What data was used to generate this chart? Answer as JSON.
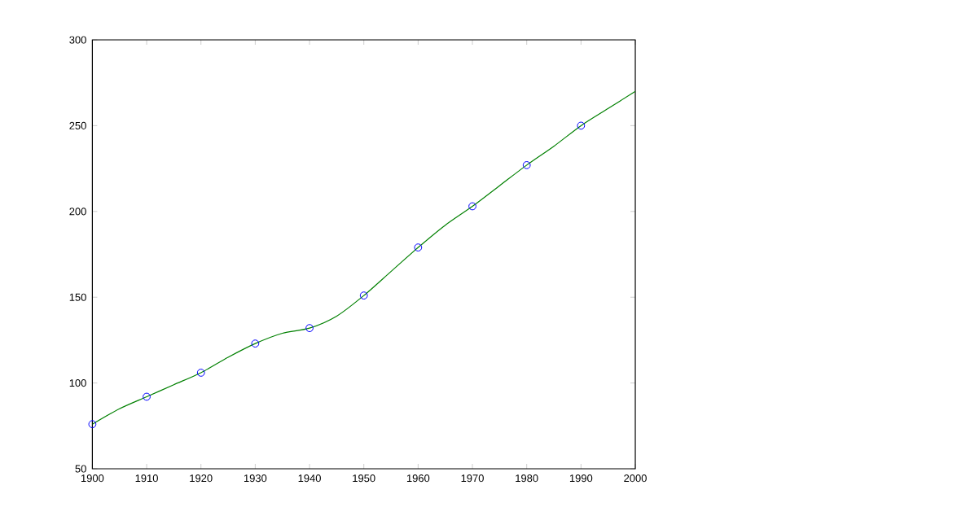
{
  "chart_data": {
    "type": "line",
    "xlim": [
      1900,
      2000
    ],
    "ylim": [
      50,
      300
    ],
    "xticks": [
      1900,
      1910,
      1920,
      1930,
      1940,
      1950,
      1960,
      1970,
      1980,
      1990,
      2000
    ],
    "yticks": [
      50,
      100,
      150,
      200,
      250,
      300
    ],
    "series": [
      {
        "type": "scatter",
        "marker": "circle",
        "color": "#0000ff",
        "x": [
          1900,
          1910,
          1920,
          1930,
          1940,
          1950,
          1960,
          1970,
          1980,
          1990
        ],
        "values": [
          76,
          92,
          106,
          123,
          132,
          151,
          179,
          203,
          227,
          250
        ]
      },
      {
        "marker": "none",
        "line_style": "solid",
        "color": "#008000",
        "x": [
          1900,
          1905,
          1910,
          1915,
          1920,
          1925,
          1930,
          1935,
          1940,
          1945,
          1950,
          1955,
          1960,
          1965,
          1970,
          1975,
          1980,
          1985,
          1990,
          1995,
          2000
        ],
        "values": [
          76,
          85,
          92,
          99,
          106,
          115,
          123,
          129,
          132,
          139,
          151,
          165,
          179,
          192,
          203,
          215,
          227,
          238,
          250,
          260,
          270
        ]
      }
    ]
  }
}
